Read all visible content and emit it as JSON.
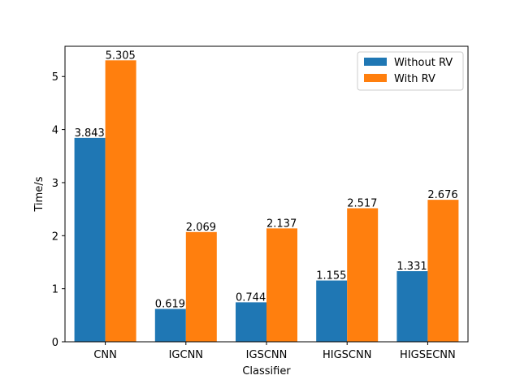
{
  "chart_data": {
    "type": "bar",
    "title": "",
    "xlabel": "Classifier",
    "ylabel": "Time/s",
    "categories": [
      "CNN",
      "IGCNN",
      "IGSCNN",
      "HIGSCNN",
      "HIGSECNN"
    ],
    "series": [
      {
        "name": "Without RV",
        "color": "#1f77b4",
        "values": [
          3.843,
          0.619,
          0.744,
          1.155,
          1.331
        ]
      },
      {
        "name": "With RV",
        "color": "#ff7f0e",
        "values": [
          5.305,
          2.069,
          2.137,
          2.517,
          2.676
        ]
      }
    ],
    "ylim": [
      0,
      5.57
    ],
    "yticks": [
      0,
      1,
      2,
      3,
      4,
      5
    ],
    "grid": false,
    "legend": "top-right"
  }
}
